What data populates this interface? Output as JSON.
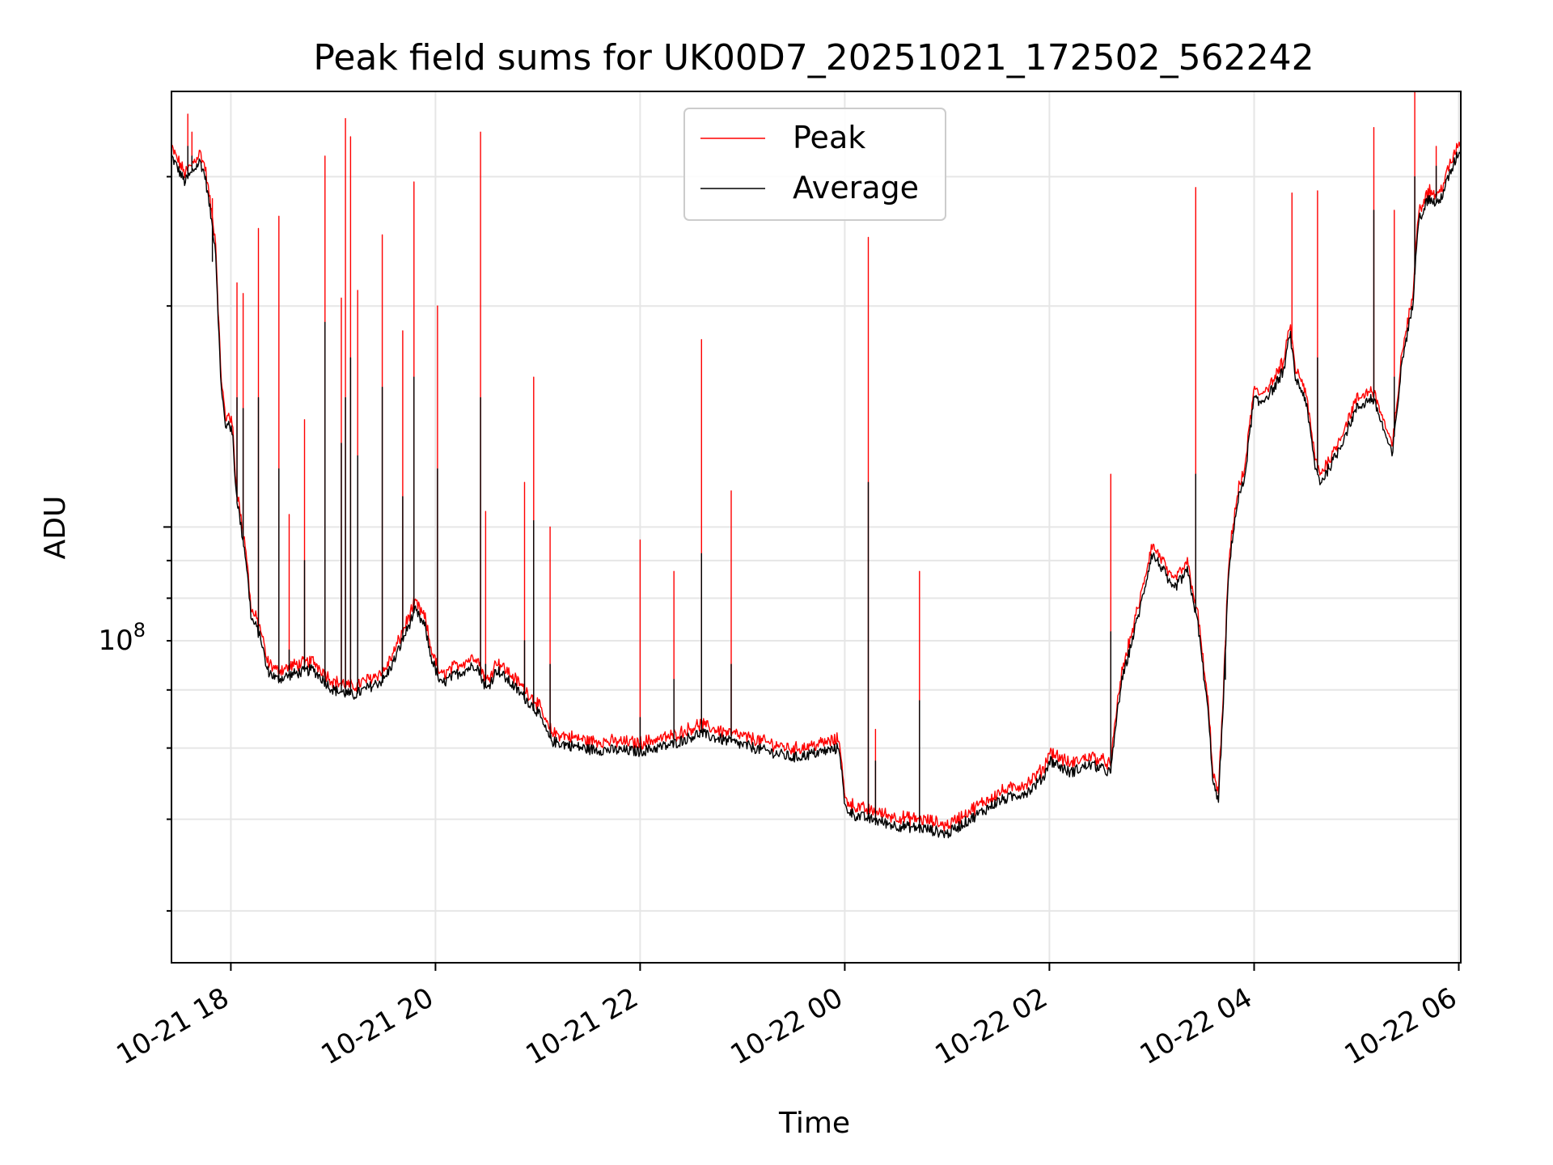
{
  "chart_data": {
    "type": "line",
    "title": "Peak field sums for UK00D7_20251021_172502_562242",
    "xlabel": "Time",
    "ylabel": "ADU",
    "yscale": "log",
    "ytick_label": "10",
    "ytick_label_exp": "8",
    "ytick_value": 100000000,
    "ylim": [
      25500000,
      392000000
    ],
    "xlim_hours": [
      -0.58,
      12.02
    ],
    "xtick_labels": [
      "10-21 18",
      "10-21 20",
      "10-21 22",
      "10-22 00",
      "10-22 02",
      "10-22 04",
      "10-22 06"
    ],
    "xtick_hours": [
      0,
      2,
      4,
      6,
      8,
      10,
      12
    ],
    "minor_ytick_values": [
      30000000,
      40000000,
      50000000,
      60000000,
      70000000,
      80000000,
      90000000,
      200000000,
      300000000
    ],
    "grid": true,
    "legend_position": "top-center",
    "series": [
      {
        "name": "Peak",
        "color": "#ff0000"
      },
      {
        "name": "Average",
        "color": "#000000"
      }
    ],
    "average_baseline": {
      "hours": [
        -0.58,
        -0.45,
        -0.3,
        -0.25,
        -0.15,
        -0.1,
        -0.05,
        -0.02,
        0.02,
        0.05,
        0.1,
        0.15,
        0.2,
        0.25,
        0.3,
        0.35,
        0.45,
        0.6,
        0.8,
        1.0,
        1.2,
        1.5,
        1.6,
        1.8,
        1.9,
        1.95,
        2.0,
        2.05,
        2.2,
        2.4,
        2.5,
        2.6,
        2.8,
        3.0,
        3.1,
        3.15,
        3.5,
        4.0,
        4.3,
        4.6,
        4.65,
        5.0,
        5.5,
        5.8,
        5.95,
        6.0,
        6.1,
        6.5,
        6.8,
        7.0,
        7.2,
        7.5,
        7.8,
        7.95,
        8.0,
        8.2,
        8.4,
        8.6,
        8.65,
        8.7,
        8.9,
        9.0,
        9.1,
        9.2,
        9.35,
        9.45,
        9.55,
        9.6,
        9.65,
        9.7,
        9.75,
        9.8,
        9.85,
        9.9,
        10.0,
        10.05,
        10.2,
        10.3,
        10.35,
        10.4,
        10.5,
        10.6,
        10.65,
        10.8,
        11.0,
        11.15,
        11.2,
        11.35,
        11.45,
        11.55,
        11.6,
        11.7,
        11.8,
        12.0
      ],
      "values": [
        320000000,
        295000000,
        315000000,
        300000000,
        240000000,
        160000000,
        135000000,
        140000000,
        132000000,
        112000000,
        100000000,
        90000000,
        75000000,
        73000000,
        70000000,
        64000000,
        62000000,
        63000000,
        64000000,
        60000000,
        59000000,
        62000000,
        66000000,
        77000000,
        73000000,
        67000000,
        64000000,
        61000000,
        63000000,
        65000000,
        60000000,
        64000000,
        60000000,
        56000000,
        52000000,
        51000000,
        49800000,
        49500000,
        50500000,
        52500000,
        52000000,
        50500000,
        48500000,
        49500000,
        50000000,
        41500000,
        40500000,
        39200000,
        38800000,
        38200000,
        39800000,
        42300000,
        43700000,
        45800000,
        48200000,
        46300000,
        47500000,
        46300000,
        54000000,
        61000000,
        79000000,
        92000000,
        88000000,
        82000000,
        87000000,
        74000000,
        56000000,
        45000000,
        42000000,
        58000000,
        86000000,
        100000000,
        110000000,
        115000000,
        150000000,
        147000000,
        155000000,
        165000000,
        185000000,
        160000000,
        150000000,
        120000000,
        115000000,
        125000000,
        145000000,
        150000000,
        145000000,
        125000000,
        170000000,
        200000000,
        260000000,
        280000000,
        275000000,
        325000000
      ]
    },
    "peak_offset_ratio": 1.02,
    "spikes": [
      {
        "hour": -0.42,
        "peak": 365000000,
        "average": 330000000
      },
      {
        "hour": -0.38,
        "peak": 345000000,
        "average": 320000000
      },
      {
        "hour": -0.18,
        "peak": 280000000,
        "average": 230000000
      },
      {
        "hour": 0.06,
        "peak": 215000000,
        "average": 150000000
      },
      {
        "hour": 0.12,
        "peak": 208000000,
        "average": 145000000
      },
      {
        "hour": 0.27,
        "peak": 255000000,
        "average": 150000000
      },
      {
        "hour": 0.47,
        "peak": 265000000,
        "average": 120000000
      },
      {
        "hour": 0.57,
        "peak": 104000000,
        "average": 68000000
      },
      {
        "hour": 0.72,
        "peak": 140000000,
        "average": 90000000
      },
      {
        "hour": 0.92,
        "peak": 320000000,
        "average": 190000000
      },
      {
        "hour": 1.08,
        "peak": 205000000,
        "average": 130000000
      },
      {
        "hour": 1.12,
        "peak": 360000000,
        "average": 150000000
      },
      {
        "hour": 1.17,
        "peak": 340000000,
        "average": 170000000
      },
      {
        "hour": 1.24,
        "peak": 210000000,
        "average": 125000000
      },
      {
        "hour": 1.48,
        "peak": 250000000,
        "average": 155000000
      },
      {
        "hour": 1.68,
        "peak": 185000000,
        "average": 110000000
      },
      {
        "hour": 1.79,
        "peak": 295000000,
        "average": 160000000
      },
      {
        "hour": 2.02,
        "peak": 200000000,
        "average": 120000000
      },
      {
        "hour": 2.44,
        "peak": 345000000,
        "average": 150000000
      },
      {
        "hour": 2.49,
        "peak": 105000000,
        "average": 65000000
      },
      {
        "hour": 2.87,
        "peak": 115000000,
        "average": 70000000
      },
      {
        "hour": 2.96,
        "peak": 160000000,
        "average": 102000000
      },
      {
        "hour": 3.12,
        "peak": 100000000,
        "average": 65000000
      },
      {
        "hour": 4.0,
        "peak": 96000000,
        "average": 55000000
      },
      {
        "hour": 4.33,
        "peak": 87000000,
        "average": 62000000
      },
      {
        "hour": 4.6,
        "peak": 180000000,
        "average": 92000000
      },
      {
        "hour": 4.89,
        "peak": 112000000,
        "average": 65000000
      },
      {
        "hour": 6.23,
        "peak": 248000000,
        "average": 115000000
      },
      {
        "hour": 6.3,
        "peak": 53000000,
        "average": 48000000
      },
      {
        "hour": 6.73,
        "peak": 87000000,
        "average": 58000000
      },
      {
        "hour": 8.6,
        "peak": 118000000,
        "average": 72000000
      },
      {
        "hour": 9.43,
        "peak": 290000000,
        "average": 118000000
      },
      {
        "hour": 9.72,
        "peak": 70000000,
        "average": 62000000
      },
      {
        "hour": 10.37,
        "peak": 285000000,
        "average": 175000000
      },
      {
        "hour": 10.62,
        "peak": 287000000,
        "average": 170000000
      },
      {
        "hour": 11.17,
        "peak": 350000000,
        "average": 270000000
      },
      {
        "hour": 11.37,
        "peak": 270000000,
        "average": 160000000
      },
      {
        "hour": 11.57,
        "peak": 392000000,
        "average": 300000000
      },
      {
        "hour": 11.78,
        "peak": 330000000,
        "average": 310000000
      }
    ]
  }
}
